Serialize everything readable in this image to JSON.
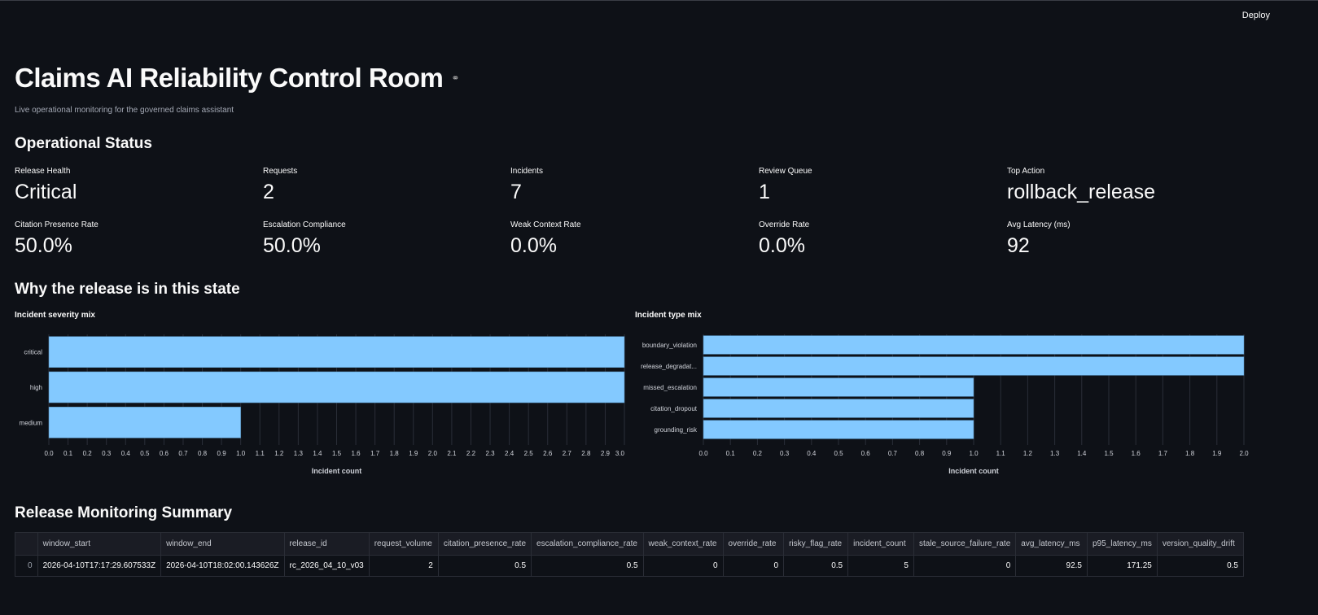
{
  "header": {
    "deploy_label": "Deploy"
  },
  "title": "Claims AI Reliability Control Room",
  "subtitle": "Live operational monitoring for the governed claims assistant",
  "status": {
    "heading": "Operational Status",
    "metrics": [
      {
        "label": "Release Health",
        "value": "Critical"
      },
      {
        "label": "Requests",
        "value": "2"
      },
      {
        "label": "Incidents",
        "value": "7"
      },
      {
        "label": "Review Queue",
        "value": "1"
      },
      {
        "label": "Top Action",
        "value": "rollback_release"
      },
      {
        "label": "Citation Presence Rate",
        "value": "50.0%"
      },
      {
        "label": "Escalation Compliance",
        "value": "50.0%"
      },
      {
        "label": "Weak Context Rate",
        "value": "0.0%"
      },
      {
        "label": "Override Rate",
        "value": "0.0%"
      },
      {
        "label": "Avg Latency (ms)",
        "value": "92"
      }
    ]
  },
  "why_heading": "Why the release is in this state",
  "chart_data": [
    {
      "type": "bar",
      "orientation": "horizontal",
      "title": "Incident severity mix",
      "xlabel": "Incident count",
      "categories": [
        "critical",
        "high",
        "medium"
      ],
      "values": [
        3,
        3,
        1
      ],
      "xlim": [
        0,
        3
      ],
      "tick_step": 0.1,
      "grid": true,
      "color": "#83c9ff"
    },
    {
      "type": "bar",
      "orientation": "horizontal",
      "title": "Incident type mix",
      "xlabel": "Incident count",
      "categories": [
        "boundary_violation",
        "release_degradat...",
        "missed_escalation",
        "citation_dropout",
        "grounding_risk"
      ],
      "values": [
        2,
        2,
        1,
        1,
        1
      ],
      "xlim": [
        0,
        2
      ],
      "tick_step": 0.1,
      "grid": true,
      "color": "#83c9ff"
    }
  ],
  "summary": {
    "heading": "Release Monitoring Summary",
    "columns": [
      "",
      "window_start",
      "window_end",
      "release_id",
      "request_volume",
      "citation_presence_rate",
      "escalation_compliance_rate",
      "weak_context_rate",
      "override_rate",
      "risky_flag_rate",
      "incident_count",
      "stale_source_failure_rate",
      "avg_latency_ms",
      "p95_latency_ms",
      "version_quality_drift"
    ],
    "rows": [
      [
        "0",
        "2026-04-10T17:17:29.607533Z",
        "2026-04-10T18:02:00.143626Z",
        "rc_2026_04_10_v03",
        "2",
        "0.5",
        "0.5",
        "0",
        "0",
        "0.5",
        "5",
        "0",
        "92.5",
        "171.25",
        "0.5"
      ]
    ]
  }
}
